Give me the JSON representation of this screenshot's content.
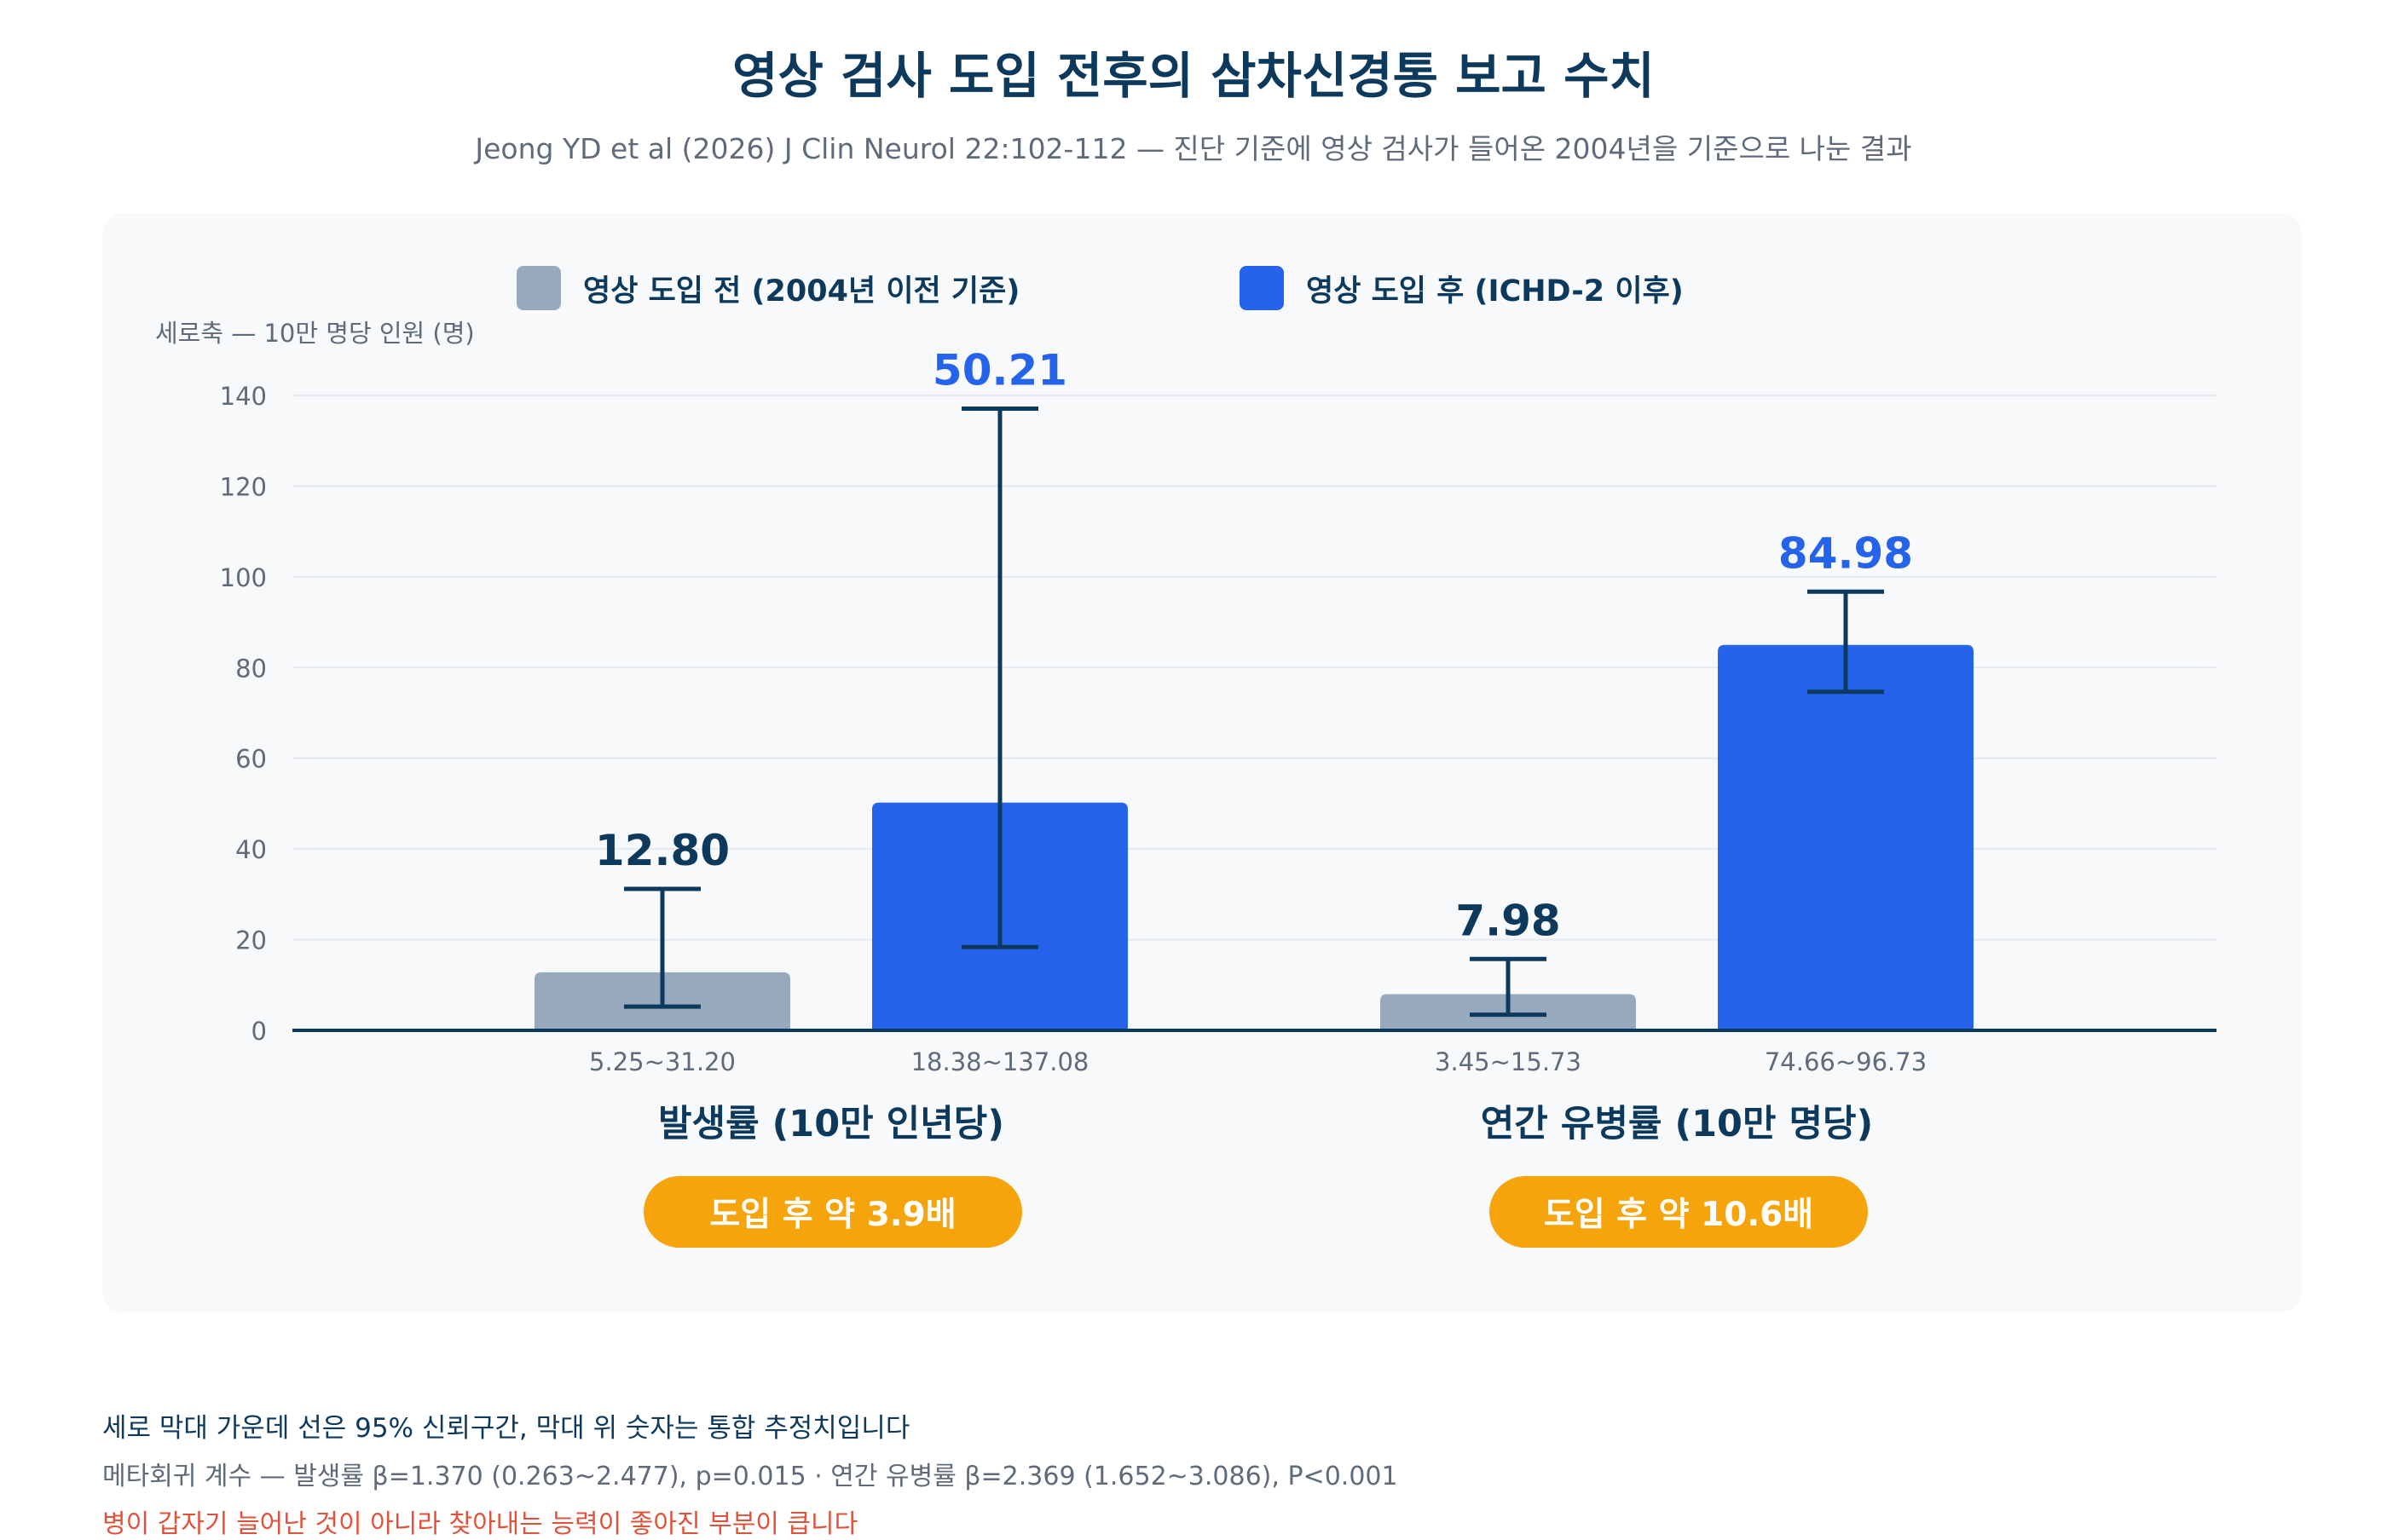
{
  "title": "영상 검사 도입 전후의 삼차신경통 보고 수치",
  "subtitle": "Jeong YD et al (2026) J Clin Neurol 22:102-112 — 진단 기준에 영상 검사가 들어온 2004년을 기준으로 나눈 결과",
  "colors": {
    "before": "#97aabd",
    "after": "#2563eb",
    "ink": "#0d3a5c",
    "muted": "#5f6b7a",
    "grid": "#e6eaef",
    "accent": "#f5a50b",
    "warning": "#e0533a"
  },
  "chart_data": {
    "type": "bar",
    "ylabel": "세로축 — 10만 명당 인원 (명)",
    "ylim": [
      0,
      140
    ],
    "yticks": [
      0,
      20,
      40,
      60,
      80,
      100,
      120,
      140
    ],
    "grid": true,
    "legend_position": "top",
    "categories": [
      "발생률 (10만 인년당)",
      "연간 유병률 (10만 명당)"
    ],
    "series": [
      {
        "name": "영상 도입 전 (2004년 이전 기준)",
        "color": "#97aabd",
        "values": [
          12.8,
          7.98
        ],
        "value_labels": [
          "12.80",
          "7.98"
        ],
        "ci_low": [
          5.25,
          3.45
        ],
        "ci_high": [
          31.2,
          15.73
        ],
        "ci_labels": [
          "5.25~31.20",
          "3.45~15.73"
        ]
      },
      {
        "name": "영상 도입 후 (ICHD-2 이후)",
        "color": "#2563eb",
        "values": [
          50.21,
          84.98
        ],
        "value_labels": [
          "50.21",
          "84.98"
        ],
        "ci_low": [
          18.38,
          74.66
        ],
        "ci_high": [
          137.08,
          96.73
        ],
        "ci_labels": [
          "18.38~137.08",
          "74.66~96.73"
        ]
      }
    ],
    "ratio_badges": [
      "도입 후 약 3.9배",
      "도입 후 약 10.6배"
    ]
  },
  "notes": {
    "ci_note": "세로 막대 가운데 선은 95% 신뢰구간, 막대 위 숫자는 통합 추정치입니다",
    "meta_regression": "메타회귀 계수 — 발생률 β=1.370 (0.263~2.477), p=0.015 · 연간 유병률 β=2.369 (1.652~3.086), P<0.001",
    "warning": "병이 갑자기 늘어난 것이 아니라 찾아내는 능력이 좋아진 부분이 큽니다"
  }
}
